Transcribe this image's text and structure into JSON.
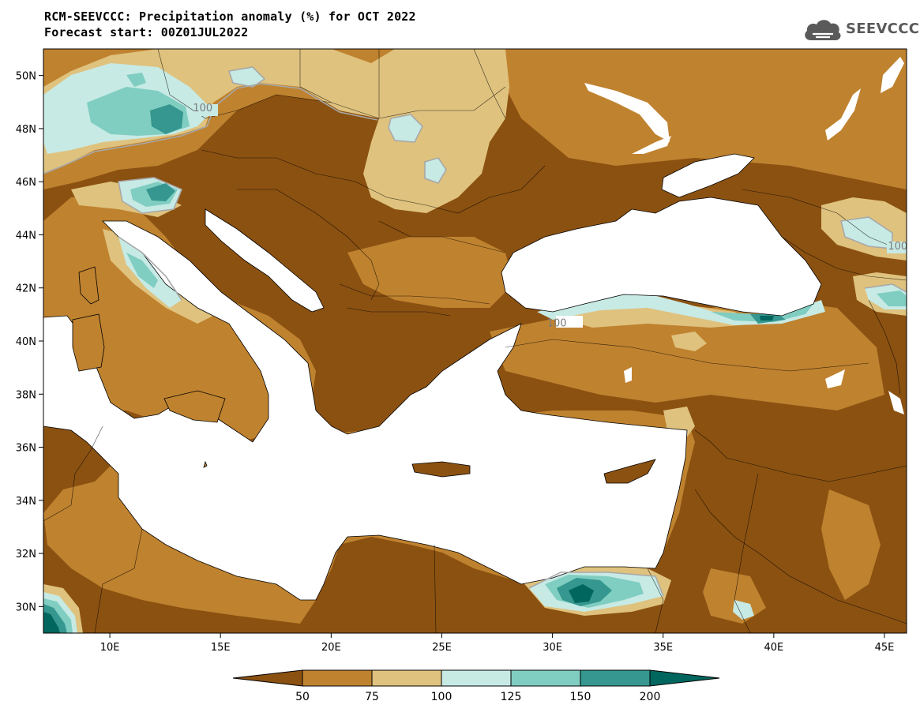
{
  "header": {
    "title": "RCM-SEEVCCC: Precipitation anomaly (%) for OCT 2022",
    "subtitle": "Forecast start: 00Z01JUL2022"
  },
  "logo": {
    "text": "SEEVCCC",
    "icon": "cloud-icon"
  },
  "map": {
    "lon_range": [
      7,
      46
    ],
    "lat_range": [
      29,
      51
    ],
    "lon_ticks": [
      {
        "value": 10,
        "label": "10E"
      },
      {
        "value": 15,
        "label": "15E"
      },
      {
        "value": 20,
        "label": "20E"
      },
      {
        "value": 25,
        "label": "25E"
      },
      {
        "value": 30,
        "label": "30E"
      },
      {
        "value": 35,
        "label": "35E"
      },
      {
        "value": 40,
        "label": "40E"
      },
      {
        "value": 45,
        "label": "45E"
      }
    ],
    "lat_ticks": [
      {
        "value": 30,
        "label": "30N"
      },
      {
        "value": 32,
        "label": "32N"
      },
      {
        "value": 34,
        "label": "34N"
      },
      {
        "value": 36,
        "label": "36N"
      },
      {
        "value": 38,
        "label": "38N"
      },
      {
        "value": 40,
        "label": "40N"
      },
      {
        "value": 42,
        "label": "42N"
      },
      {
        "value": 44,
        "label": "44N"
      },
      {
        "value": 46,
        "label": "46N"
      },
      {
        "value": 48,
        "label": "48N"
      },
      {
        "value": 50,
        "label": "50N"
      }
    ],
    "contour_labels": [
      {
        "text": "100",
        "lon": 14.2,
        "lat": 48.8
      },
      {
        "text": "100",
        "lon": 45.6,
        "lat": 43.6
      },
      {
        "text": "100",
        "lon": 30.2,
        "lat": 40.7
      }
    ]
  },
  "colors": {
    "below_50": "#8b5111",
    "50_75": "#bf822f",
    "75_100": "#dfc27e",
    "100_125": "#c7eae5",
    "125_150": "#80cdc1",
    "150_200": "#35978f",
    "above_200": "#01665e",
    "water": "#ffffff"
  },
  "colorbar": {
    "labels": [
      "50",
      "75",
      "100",
      "125",
      "150",
      "200"
    ]
  }
}
